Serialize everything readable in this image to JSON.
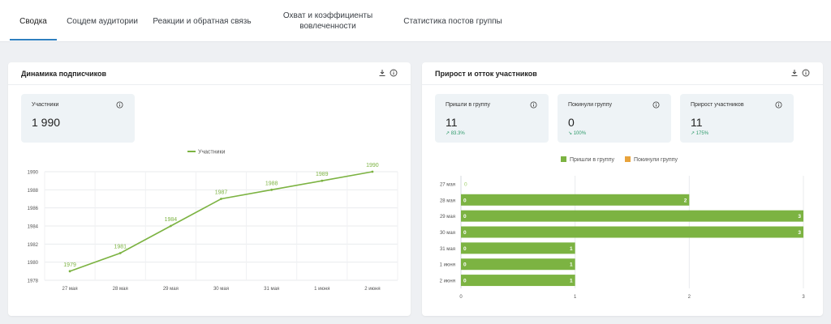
{
  "tabs": [
    {
      "label": "Сводка"
    },
    {
      "label": "Соцдем аудитории"
    },
    {
      "label": "Реакции и обратная связь"
    },
    {
      "label": "Охват и коэффициенты вовлеченности"
    },
    {
      "label": "Статистика постов группы"
    }
  ],
  "left_card": {
    "title": "Динамика подписчиков",
    "stat": {
      "label": "Участники",
      "value": "1 990"
    }
  },
  "right_card": {
    "title": "Прирост и отток участников",
    "stats": [
      {
        "label": "Пришли в группу",
        "value": "11",
        "change": "↗ 83.3%"
      },
      {
        "label": "Покинули группу",
        "value": "0",
        "change": "↘ 100%"
      },
      {
        "label": "Прирост участников",
        "value": "11",
        "change": "↗ 175%"
      }
    ]
  },
  "colors": {
    "green": "#7cb342",
    "orange": "#e8a33c",
    "accent": "#2f7fbf"
  },
  "chart_data": [
    {
      "type": "line",
      "x": [
        "27 мая",
        "28 мая",
        "29 мая",
        "30 мая",
        "31 мая",
        "1 июня",
        "2 июня"
      ],
      "series": [
        {
          "name": "Участники",
          "values": [
            1979,
            1981,
            1984,
            1987,
            1988,
            1989,
            1990
          ]
        }
      ],
      "ylim": [
        1978,
        1990
      ],
      "yticks": [
        1978,
        1980,
        1982,
        1984,
        1986,
        1988,
        1990
      ],
      "legend": "top",
      "grid": true
    },
    {
      "type": "bar",
      "orientation": "horizontal",
      "categories": [
        "27 мая",
        "28 мая",
        "29 мая",
        "30 мая",
        "31 мая",
        "1 июня",
        "2 июня"
      ],
      "series": [
        {
          "name": "Пришли в группу",
          "values": [
            0,
            2,
            3,
            3,
            1,
            1,
            1
          ]
        },
        {
          "name": "Покинули группу",
          "values": [
            0,
            0,
            0,
            0,
            0,
            0,
            0
          ]
        }
      ],
      "xlim": [
        0,
        3
      ],
      "xticks": [
        0,
        1,
        2,
        3
      ],
      "legend": "top",
      "grid": true
    }
  ]
}
